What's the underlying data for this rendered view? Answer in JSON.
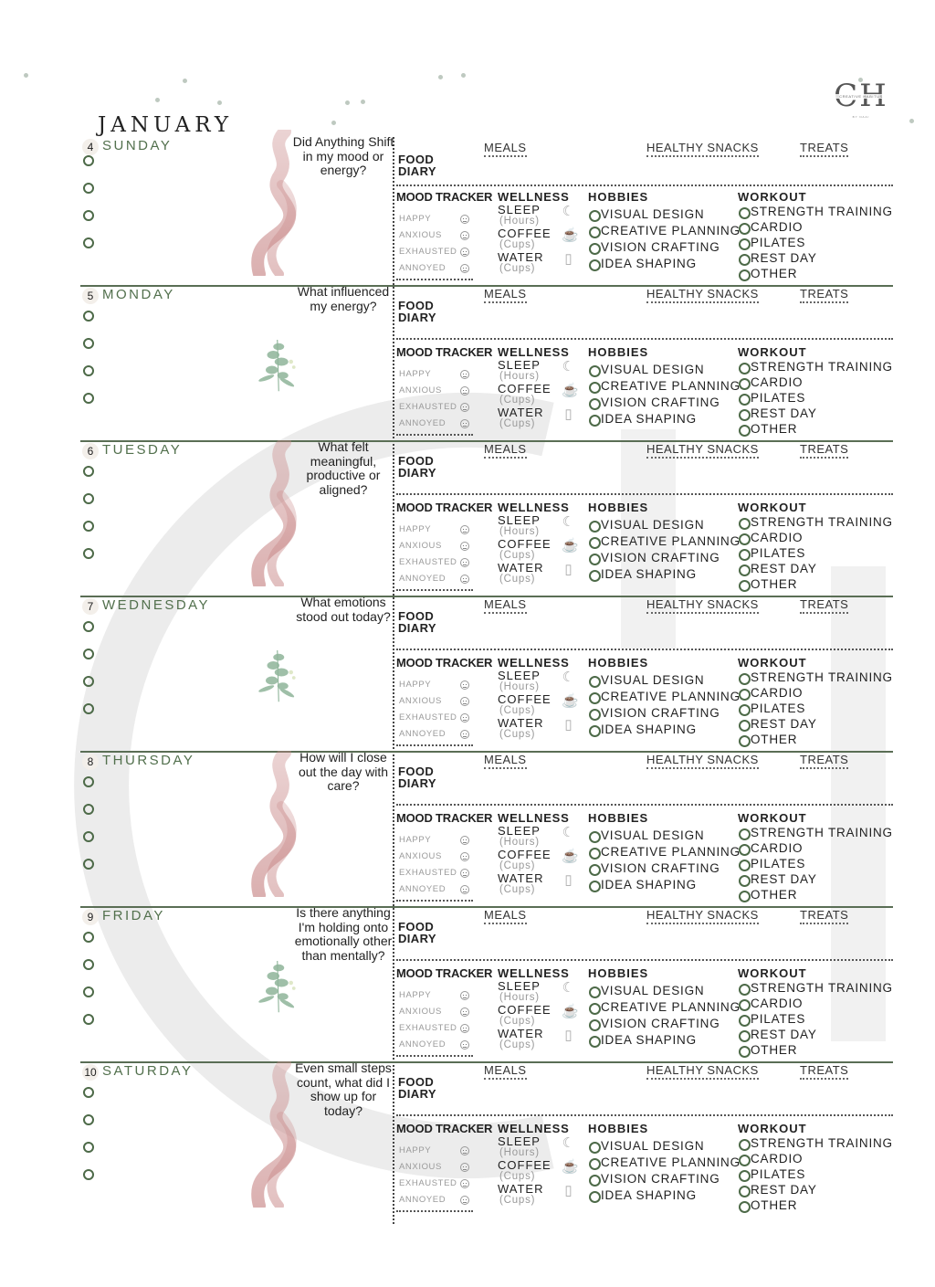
{
  "header": {
    "month": "JANUARY",
    "logo": {
      "initials": "CH",
      "brand": "CREATIVE HABITUS",
      "byline": "BY NAAI"
    }
  },
  "sections": {
    "food_diary_label_line1": "FOOD",
    "food_diary_label_line2": "DIARY",
    "food_columns": [
      "MEALS",
      "HEALTHY SNACKS",
      "TREATS"
    ],
    "mood_tracker_title": "MOOD TRACKER",
    "moods": [
      "HAPPY",
      "ANXIOUS",
      "EXHAUSTED",
      "ANNOYED"
    ],
    "wellness_title": "WELLNESS",
    "wellness_items": [
      {
        "label": "SLEEP",
        "unit": "(Hours)",
        "icon": "moon-icon"
      },
      {
        "label": "COFFEE",
        "unit": "(Cups)",
        "icon": "coffee-cup-icon"
      },
      {
        "label": "WATER",
        "unit": "(Cups)",
        "icon": "water-glass-icon"
      }
    ],
    "hobbies_title": "HOBBIES",
    "hobbies": [
      "VISUAL DESIGN",
      "CREATIVE PLANNING",
      "VISION CRAFTING",
      "IDEA SHAPING"
    ],
    "workout_title": "WORKOUT",
    "workouts": [
      "STRENGTH TRAINING",
      "CARDIO",
      "PILATES",
      "REST DAY",
      "OTHER"
    ]
  },
  "days": [
    {
      "num": "4",
      "name": "SUNDAY",
      "prompt": "Did Anything Shift in my mood or energy?",
      "art": "pink-swirl"
    },
    {
      "num": "5",
      "name": "MONDAY",
      "prompt": "What influenced my energy?",
      "art": "eucalyptus"
    },
    {
      "num": "6",
      "name": "TUESDAY",
      "prompt": "What felt meaningful, productive or aligned?",
      "art": "pink-swirl"
    },
    {
      "num": "7",
      "name": "WEDNESDAY",
      "prompt": "What emotions stood out today?",
      "art": "eucalyptus"
    },
    {
      "num": "8",
      "name": "THURSDAY",
      "prompt": "How will I close out the day with care?",
      "art": "pink-swirl"
    },
    {
      "num": "9",
      "name": "FRIDAY",
      "prompt": "Is there anything I'm holding onto emotionally other than mentally?",
      "art": "eucalyptus"
    },
    {
      "num": "10",
      "name": "SATURDAY",
      "prompt": "Even small steps count, what did I show up for today?",
      "art": "pink-swirl"
    }
  ],
  "colors": {
    "accent_green": "#52704d",
    "rule_green": "#5a6e55",
    "swirl_pink": "#c98a8a",
    "leaf_green": "#8fb59a"
  }
}
